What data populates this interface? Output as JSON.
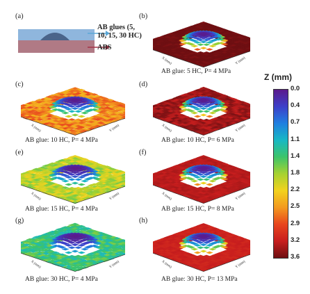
{
  "schematic": {
    "panel_label": "(a)",
    "label_glue_line1": "AB glues (5,",
    "label_glue_line2": "10, 15, 30 HC)",
    "label_abs": "ABS",
    "colors": {
      "glue": "#8fb6dd",
      "substrate": "#b07a85",
      "dome": "#4a648a",
      "glue_arrow": "#5aa7d6",
      "abs_arrow": "#a33347"
    }
  },
  "panels": [
    {
      "id": "b",
      "label": "(b)",
      "caption": "AB glue: 5 HC, P= 4 MPa",
      "axes": {
        "x": "X (mm)",
        "y": "Y (mm)",
        "z": "Z (mm)"
      },
      "baseline_z_mm": 3.6,
      "roughness": "low"
    },
    {
      "id": "c",
      "label": "(c)",
      "caption": "AB glue: 10 HC, P= 4 MPa",
      "axes": {
        "x": "X (mm)",
        "y": "Y (mm)",
        "z": "Z (mm)"
      },
      "baseline_z_mm": 2.6,
      "roughness": "high"
    },
    {
      "id": "d",
      "label": "(d)",
      "caption": "AB glue: 10 HC, P= 6 MPa",
      "axes": {
        "x": "X (mm)",
        "y": "Y (mm)",
        "z": "Z (mm)"
      },
      "baseline_z_mm": 3.4,
      "roughness": "medium"
    },
    {
      "id": "e",
      "label": "(e)",
      "caption": "AB glue: 15 HC, P= 4 MPa",
      "axes": {
        "x": "X (mm)",
        "y": "Y (mm)",
        "z": "Z (mm)"
      },
      "baseline_z_mm": 1.9,
      "roughness": "high"
    },
    {
      "id": "f",
      "label": "(f)",
      "caption": "AB glue: 15 HC, P= 8 MPa",
      "axes": {
        "x": "X (mm)",
        "y": "Y (mm)",
        "z": "Z (mm)"
      },
      "baseline_z_mm": 3.3,
      "roughness": "low"
    },
    {
      "id": "g",
      "label": "(g)",
      "caption": "AB glue: 30 HC, P= 4 MPa",
      "axes": {
        "x": "X (mm)",
        "y": "Y (mm)",
        "z": "Z (mm)"
      },
      "baseline_z_mm": 1.4,
      "roughness": "high"
    },
    {
      "id": "h",
      "label": "(h)",
      "caption": "AB glue: 30 HC, P= 13 MPa",
      "axes": {
        "x": "X (mm)",
        "y": "Y (mm)",
        "z": "Z (mm)"
      },
      "baseline_z_mm": 3.2,
      "roughness": "low"
    }
  ],
  "colorbar": {
    "title": "Z (mm)",
    "ticks": [
      "0.0",
      "0.4",
      "0.7",
      "1.1",
      "1.4",
      "1.8",
      "2.2",
      "2.5",
      "2.9",
      "3.2",
      "3.6"
    ],
    "range_mm": [
      0.0,
      3.6
    ],
    "stops": [
      "#5b1a8c",
      "#3d3fc9",
      "#1f7fe0",
      "#18b8c4",
      "#3cc46a",
      "#a6d230",
      "#f2d21e",
      "#f39a1f",
      "#e8461e",
      "#c81e1e",
      "#6e0f12"
    ]
  }
}
